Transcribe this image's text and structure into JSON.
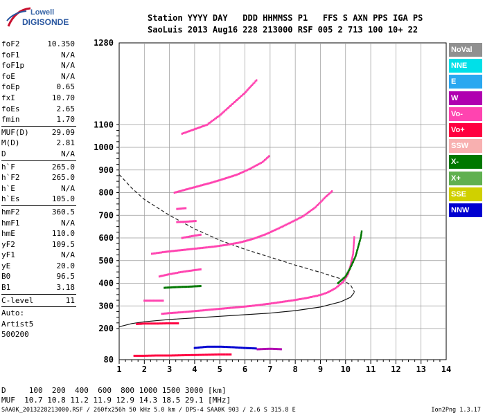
{
  "logo": {
    "line1": "Lowell",
    "line2": "DIGISONDE"
  },
  "header": {
    "labels": "Station YYYY DAY   DDD HHMMSS P1   FFS S AXN PPS IGA PS",
    "values": "SaoLuis 2013 Aug16 228 213000 RSF 005 2 713 100 10+ 22"
  },
  "params": {
    "group1": [
      {
        "k": "foF2",
        "v": "10.350"
      },
      {
        "k": "foF1",
        "v": "N/A"
      },
      {
        "k": "foF1p",
        "v": "N/A"
      },
      {
        "k": "foE",
        "v": "N/A"
      },
      {
        "k": "foEp",
        "v": "0.65"
      },
      {
        "k": "fxI",
        "v": "10.70"
      },
      {
        "k": "foEs",
        "v": "2.65"
      },
      {
        "k": "fmin",
        "v": "1.70"
      }
    ],
    "group2": [
      {
        "k": "MUF(D)",
        "v": "29.09"
      },
      {
        "k": "M(D)",
        "v": "2.81"
      },
      {
        "k": "D",
        "v": "N/A"
      }
    ],
    "group3": [
      {
        "k": "h`F",
        "v": "265.0"
      },
      {
        "k": "h`F2",
        "v": "265.0"
      },
      {
        "k": "h`E",
        "v": "N/A"
      },
      {
        "k": "h`Es",
        "v": "105.0"
      }
    ],
    "group4": [
      {
        "k": "hmF2",
        "v": "360.5"
      },
      {
        "k": "hmF1",
        "v": "N/A"
      },
      {
        "k": "hmE",
        "v": "110.0"
      },
      {
        "k": "yF2",
        "v": "109.5"
      },
      {
        "k": "yF1",
        "v": "N/A"
      },
      {
        "k": "yE",
        "v": "20.0"
      },
      {
        "k": "B0",
        "v": "96.5"
      },
      {
        "k": "B1",
        "v": "3.18"
      }
    ],
    "group5": [
      {
        "k": "C-level",
        "v": "11"
      }
    ],
    "auto": [
      "Auto:",
      "Artist5",
      "500200"
    ]
  },
  "legend": [
    {
      "label": "NoVal",
      "color": "#909090"
    },
    {
      "label": "NNE",
      "color": "#00e0e8"
    },
    {
      "label": "E",
      "color": "#2aa8f0"
    },
    {
      "label": "W",
      "color": "#b000b0"
    },
    {
      "label": "Vo-",
      "color": "#ff44b0"
    },
    {
      "label": "Vo+",
      "color": "#ff0040"
    },
    {
      "label": "SSW",
      "color": "#f8b0b0"
    },
    {
      "label": "X-",
      "color": "#007800"
    },
    {
      "label": "X+",
      "color": "#60b050"
    },
    {
      "label": "SSE",
      "color": "#d0d000"
    },
    {
      "label": "NNW",
      "color": "#0000d0"
    }
  ],
  "muf_table": {
    "d_row": "D     100  200  400  600  800 1000 1500 3000 [km]",
    "muf_row": "MUF  10.7 10.8 11.2 11.9 12.9 14.3 18.5 29.1 [MHz]"
  },
  "footer": {
    "left": "SAA0K_2013228213000.RSF / 260fx256h 50 kHz 5.0 km / DPS-4 SAA0K 903 / 2.6 S 315.8 E",
    "right": "Ion2Png 1.3.17"
  },
  "chart_data": {
    "type": "scatter",
    "xlim": [
      1,
      14
    ],
    "ylim": [
      80,
      1280
    ],
    "x_ticks": [
      1,
      2,
      3,
      4,
      5,
      6,
      7,
      8,
      9,
      10,
      11,
      12,
      13,
      14
    ],
    "y_ticks": [
      80,
      200,
      300,
      400,
      500,
      600,
      700,
      800,
      900,
      1000,
      1100,
      1280
    ],
    "grid": true,
    "profile_solid": [
      [
        1.0,
        208
      ],
      [
        1.5,
        222
      ],
      [
        2.0,
        230
      ],
      [
        3.0,
        240
      ],
      [
        4.0,
        247
      ],
      [
        5.0,
        254
      ],
      [
        6.0,
        261
      ],
      [
        7.0,
        268
      ],
      [
        8.0,
        279
      ],
      [
        9.0,
        295
      ],
      [
        9.8,
        318
      ],
      [
        10.2,
        338
      ],
      [
        10.35,
        360
      ]
    ],
    "profile_dashed": [
      [
        1.0,
        880
      ],
      [
        1.5,
        820
      ],
      [
        2.0,
        770
      ],
      [
        3.0,
        700
      ],
      [
        4.0,
        640
      ],
      [
        5.0,
        590
      ],
      [
        6.0,
        550
      ],
      [
        7.0,
        515
      ],
      [
        8.0,
        480
      ],
      [
        9.0,
        448
      ],
      [
        9.8,
        420
      ],
      [
        10.2,
        392
      ],
      [
        10.35,
        362
      ]
    ],
    "traces": [
      {
        "color": "#ff44b0",
        "pts": [
          [
            2.7,
            265
          ],
          [
            3,
            268
          ],
          [
            3.5,
            272
          ],
          [
            4,
            277
          ],
          [
            4.5,
            282
          ],
          [
            5,
            287
          ],
          [
            5.5,
            292
          ],
          [
            6,
            297
          ],
          [
            6.5,
            303
          ],
          [
            7,
            310
          ],
          [
            7.5,
            318
          ],
          [
            8,
            326
          ],
          [
            8.5,
            336
          ],
          [
            9,
            348
          ],
          [
            9.3,
            360
          ],
          [
            9.6,
            378
          ],
          [
            9.9,
            405
          ],
          [
            10.1,
            440
          ],
          [
            10.2,
            480
          ],
          [
            10.3,
            530
          ],
          [
            10.35,
            610
          ]
        ]
      },
      {
        "color": "#007800",
        "pts": [
          [
            9.7,
            400
          ],
          [
            10,
            430
          ],
          [
            10.2,
            470
          ],
          [
            10.4,
            520
          ],
          [
            10.5,
            560
          ],
          [
            10.6,
            600
          ],
          [
            10.65,
            635
          ]
        ]
      },
      {
        "color": "#ff44b0",
        "pts": [
          [
            2.3,
            530
          ],
          [
            2.8,
            538
          ],
          [
            3.2,
            543
          ],
          [
            3.8,
            550
          ],
          [
            4.3,
            556
          ],
          [
            4.8,
            562
          ],
          [
            5.3,
            570
          ],
          [
            5.8,
            580
          ],
          [
            6.3,
            595
          ],
          [
            6.8,
            615
          ],
          [
            7.3,
            640
          ],
          [
            7.8,
            667
          ],
          [
            8.3,
            695
          ],
          [
            8.8,
            735
          ],
          [
            9.2,
            780
          ],
          [
            9.5,
            810
          ]
        ]
      },
      {
        "color": "#ff44b0",
        "pts": [
          [
            3.2,
            800
          ],
          [
            3.7,
            815
          ],
          [
            4.2,
            830
          ],
          [
            4.7,
            845
          ],
          [
            5.2,
            862
          ],
          [
            5.7,
            880
          ],
          [
            6.2,
            905
          ],
          [
            6.7,
            935
          ],
          [
            7,
            965
          ]
        ]
      },
      {
        "color": "#ff44b0",
        "pts": [
          [
            3.5,
            1060
          ],
          [
            4,
            1080
          ],
          [
            4.5,
            1100
          ],
          [
            5,
            1120
          ],
          [
            5.5,
            1145
          ],
          [
            6,
            1170
          ],
          [
            6.5,
            1200
          ]
        ]
      },
      {
        "color": "#ff44b0",
        "pts": [
          [
            2,
            323
          ],
          [
            2.4,
            323
          ],
          [
            2.8,
            323
          ]
        ]
      },
      {
        "color": "#ff44b0",
        "pts": [
          [
            2.6,
            430
          ],
          [
            3,
            440
          ],
          [
            3.5,
            450
          ],
          [
            4,
            458
          ],
          [
            4.3,
            462
          ]
        ]
      },
      {
        "color": "#007800",
        "pts": [
          [
            2.8,
            380
          ],
          [
            3.3,
            383
          ],
          [
            3.8,
            385
          ],
          [
            4.3,
            388
          ]
        ]
      },
      {
        "color": "#ff0040",
        "pts": [
          [
            1.7,
            220
          ],
          [
            2,
            222
          ],
          [
            2.5,
            222
          ],
          [
            3,
            223
          ],
          [
            3.4,
            223
          ]
        ]
      },
      {
        "color": "#ff0040",
        "pts": [
          [
            1.6,
            95
          ],
          [
            2,
            95
          ],
          [
            2.5,
            96
          ],
          [
            3,
            96
          ],
          [
            3.5,
            97
          ],
          [
            4,
            98
          ],
          [
            4.5,
            99
          ],
          [
            5,
            100
          ],
          [
            5.5,
            100
          ]
        ]
      },
      {
        "color": "#0000d0",
        "pts": [
          [
            4,
            125
          ],
          [
            4.5,
            130
          ],
          [
            5,
            130
          ],
          [
            5.5,
            128
          ],
          [
            6,
            125
          ],
          [
            6.5,
            123
          ]
        ]
      },
      {
        "color": "#b000b0",
        "pts": [
          [
            6.5,
            120
          ],
          [
            7,
            122
          ],
          [
            7.5,
            120
          ]
        ]
      },
      {
        "color": "#ff44b0",
        "pts": [
          [
            3.5,
            600
          ],
          [
            4,
            610
          ],
          [
            4.3,
            615
          ]
        ]
      },
      {
        "color": "#ff44b0",
        "pts": [
          [
            3.3,
            670
          ],
          [
            3.7,
            672
          ],
          [
            4.1,
            675
          ]
        ]
      },
      {
        "color": "#ff44b0",
        "pts": [
          [
            3.3,
            728
          ],
          [
            3.7,
            732
          ]
        ]
      }
    ]
  }
}
